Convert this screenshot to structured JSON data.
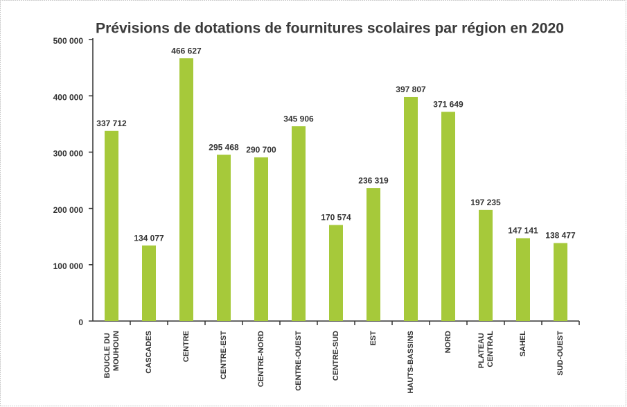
{
  "chart_data": {
    "type": "bar",
    "title": "Prévisions de dotations de fournitures scolaires par région en 2020",
    "categories": [
      "BOUCLE DU MOUHOUN",
      "CASCADES",
      "CENTRE",
      "CENTRE-EST",
      "CENTRE-NORD",
      "CENTRE-OUEST",
      "CENTRE-SUD",
      "EST",
      "HAUTS-BASSINS",
      "NORD",
      "PLATEAU CENTRAL",
      "SAHEL",
      "SUD-OUEST"
    ],
    "values": [
      337712,
      134077,
      466627,
      295468,
      290700,
      345906,
      170574,
      236319,
      397807,
      371649,
      197235,
      147141,
      138477
    ],
    "value_labels": [
      "337 712",
      "134 077",
      "466 627",
      "295 468",
      "290 700",
      "345 906",
      "170 574",
      "236 319",
      "397 807",
      "371 649",
      "197 235",
      "147 141",
      "138 477"
    ],
    "color": "#a6c93a",
    "ylim": [
      0,
      500000
    ],
    "yticks": [
      0,
      {
        "value": 100000,
        "label": "100 000"
      },
      {
        "value": 200000,
        "label": "200 000"
      },
      {
        "value": 300000,
        "label": "300 000"
      },
      {
        "value": 400000,
        "label": "400 000"
      },
      {
        "value": 500000,
        "label": "500 000"
      }
    ],
    "grid": false
  }
}
